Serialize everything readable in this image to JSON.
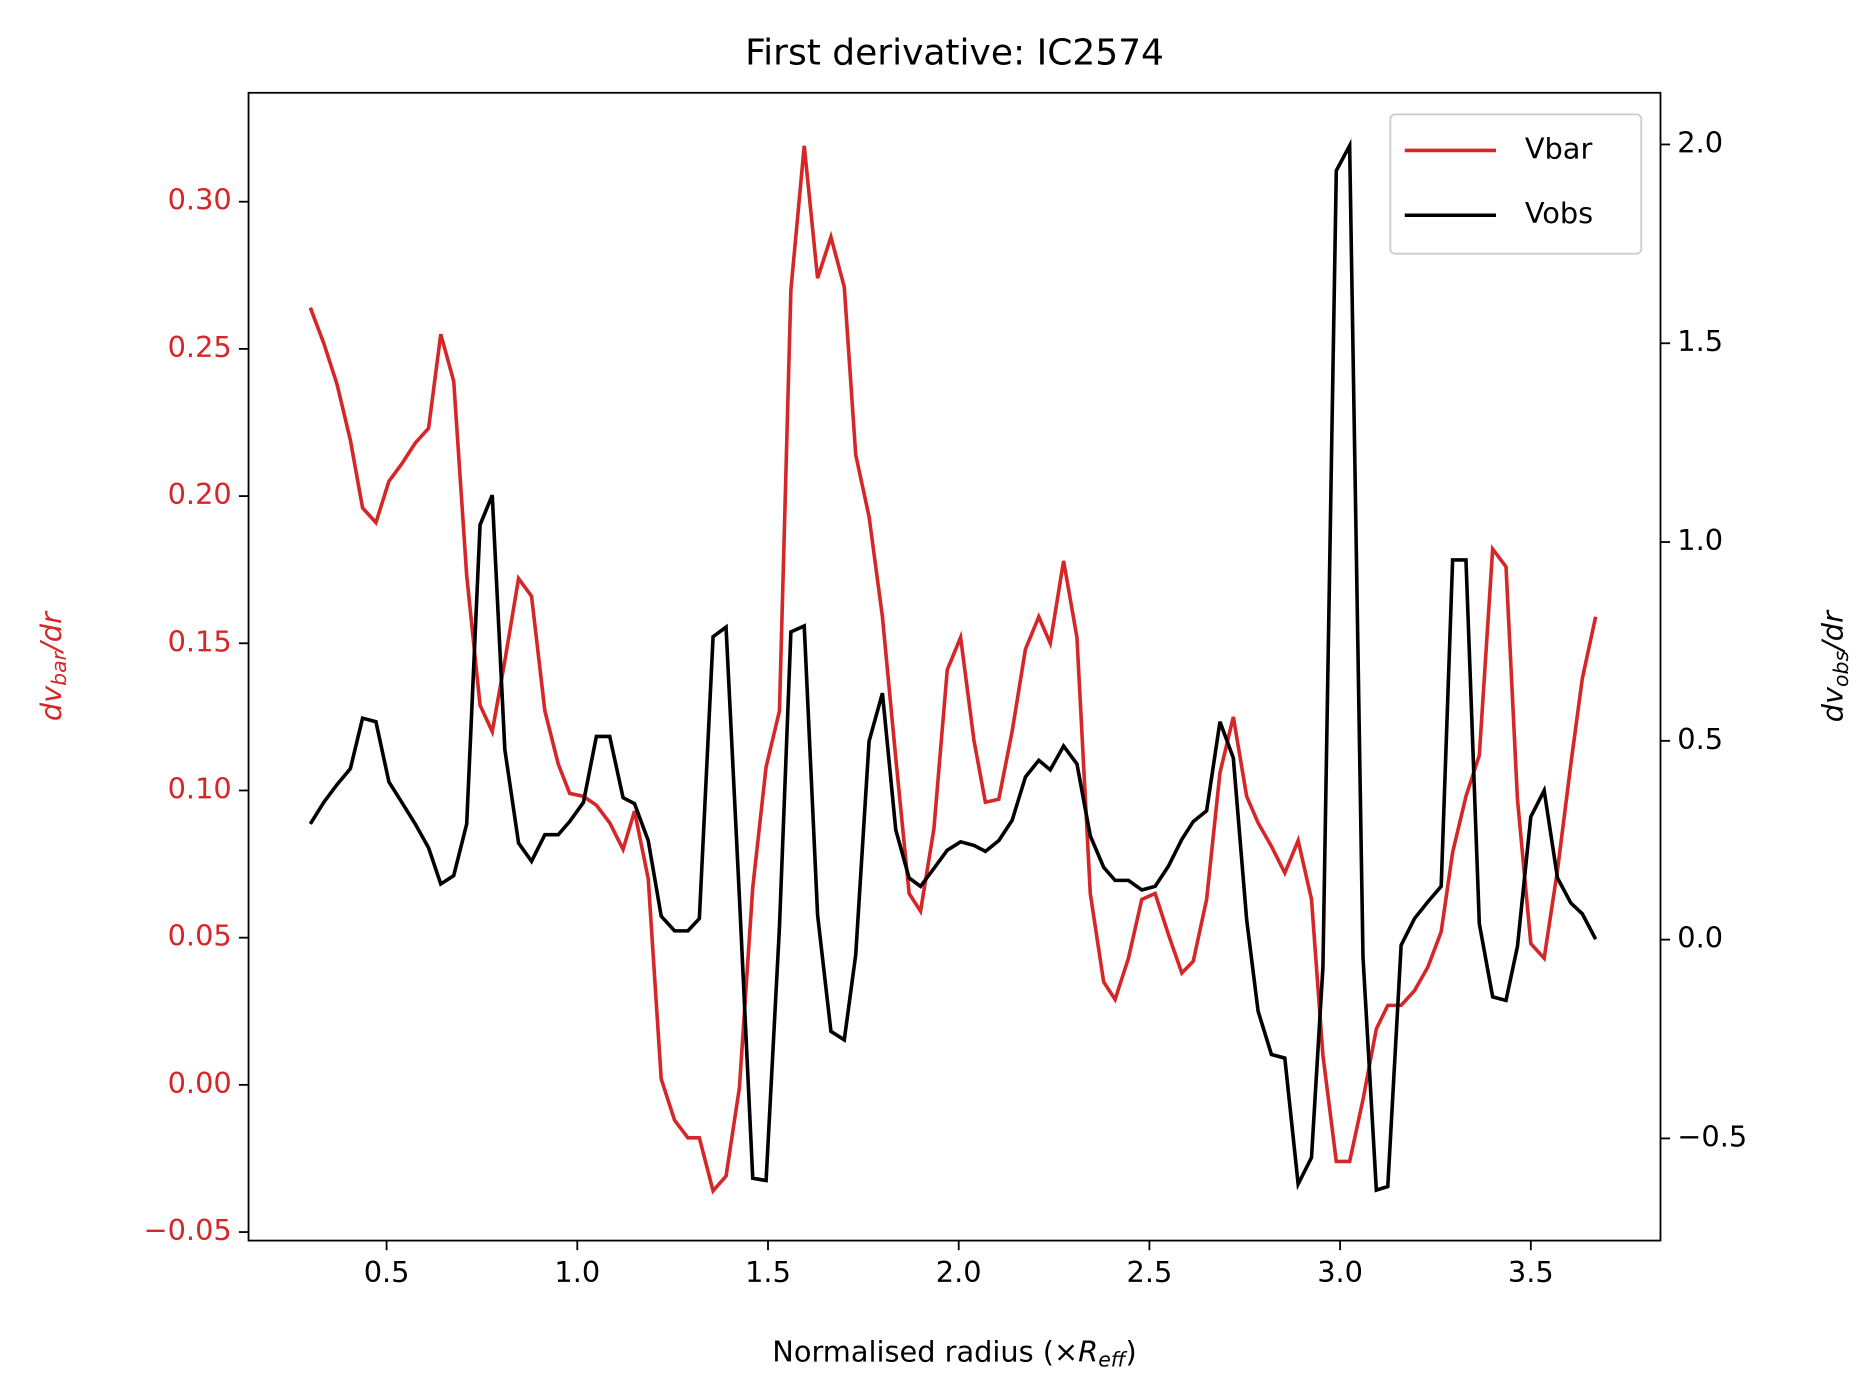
{
  "chart_data": {
    "type": "line",
    "title": "First derivative: IC2574",
    "xlabel": [
      "Normalised radius (×",
      "R",
      "eff",
      ")"
    ],
    "ylabel": [
      "dv",
      "bar",
      "/dr"
    ],
    "y2label": [
      "dv",
      "obs",
      "/dr"
    ],
    "xlim": [
      0.138,
      3.84
    ],
    "ylim": [
      -0.0529,
      0.337
    ],
    "y2lim": [
      -0.757,
      2.13
    ],
    "xticks": [
      0.5,
      {
        "value": 1.0,
        "label": "1.0"
      },
      1.5,
      {
        "value": 2.0,
        "label": "2.0"
      },
      2.5,
      {
        "value": 3.0,
        "label": "3.0"
      },
      3.5
    ],
    "yticks": [
      {
        "value": -0.05,
        "label": "−0.05"
      },
      {
        "value": 0.0,
        "label": "0.00"
      },
      0.05,
      {
        "value": 0.1,
        "label": "0.10"
      },
      0.15,
      {
        "value": 0.2,
        "label": "0.20"
      },
      0.25,
      {
        "value": 0.3,
        "label": "0.30"
      }
    ],
    "y2ticks": [
      {
        "value": -0.5,
        "label": "−0.5"
      },
      {
        "value": 0.0,
        "label": "0.0"
      },
      0.5,
      {
        "value": 1.0,
        "label": "1.0"
      },
      1.5,
      {
        "value": 2.0,
        "label": "2.0"
      }
    ],
    "legend": "upper right",
    "x": [
      0.3,
      0.335,
      0.37,
      0.405,
      0.437,
      0.472,
      0.506,
      0.54,
      0.575,
      0.61,
      0.642,
      0.676,
      0.71,
      0.745,
      0.777,
      0.81,
      0.846,
      0.88,
      0.915,
      0.95,
      0.98,
      1.016,
      1.05,
      1.085,
      1.12,
      1.15,
      1.186,
      1.22,
      1.255,
      1.29,
      1.32,
      1.356,
      1.39,
      1.425,
      1.46,
      1.495,
      1.53,
      1.56,
      1.595,
      1.63,
      1.665,
      1.7,
      1.73,
      1.765,
      1.8,
      1.835,
      1.87,
      1.9,
      1.935,
      1.97,
      2.005,
      2.04,
      2.07,
      2.105,
      2.14,
      2.175,
      2.21,
      2.24,
      2.275,
      2.31,
      2.345,
      2.38,
      2.41,
      2.445,
      2.48,
      2.515,
      2.55,
      2.585,
      2.615,
      2.65,
      2.685,
      2.72,
      2.755,
      2.785,
      2.82,
      2.855,
      2.89,
      2.925,
      2.955,
      2.99,
      3.025,
      3.06,
      3.095,
      3.125,
      3.16,
      3.195,
      3.23,
      3.265,
      3.295,
      3.33,
      3.365,
      3.4,
      3.435,
      3.465,
      3.5,
      3.535,
      3.57,
      3.605,
      3.635,
      3.67
    ],
    "series": [
      {
        "name": "Vbar",
        "color": "#d62728",
        "axis": "y",
        "values": [
          0.264,
          0.252,
          0.238,
          0.219,
          0.196,
          0.191,
          0.205,
          0.211,
          0.218,
          0.223,
          0.255,
          0.239,
          0.173,
          0.129,
          0.12,
          0.144,
          0.172,
          0.166,
          0.127,
          0.109,
          0.099,
          0.098,
          0.095,
          0.089,
          0.08,
          0.093,
          0.07,
          0.002,
          -0.012,
          -0.018,
          -0.018,
          -0.036,
          -0.031,
          -0.001,
          0.067,
          0.108,
          0.127,
          0.27,
          0.319,
          0.274,
          0.288,
          0.271,
          0.214,
          0.193,
          0.159,
          0.111,
          0.065,
          0.059,
          0.087,
          0.141,
          0.152,
          0.117,
          0.096,
          0.097,
          0.12,
          0.148,
          0.159,
          0.15,
          0.178,
          0.152,
          0.065,
          0.035,
          0.029,
          0.043,
          0.063,
          0.065,
          0.051,
          0.038,
          0.042,
          0.063,
          0.106,
          0.125,
          0.098,
          0.089,
          0.081,
          0.072,
          0.083,
          0.063,
          0.01,
          -0.026,
          -0.026,
          -0.005,
          0.019,
          0.027,
          0.027,
          0.032,
          0.04,
          0.052,
          0.079,
          0.098,
          0.112,
          0.182,
          0.176,
          0.097,
          0.048,
          0.043,
          0.073,
          0.109,
          0.138,
          0.159
        ]
      },
      {
        "name": "Vobs",
        "color": "#000000",
        "axis": "y2",
        "values": [
          0.291,
          0.345,
          0.39,
          0.43,
          0.557,
          0.548,
          0.397,
          0.345,
          0.291,
          0.231,
          0.14,
          0.161,
          0.291,
          1.043,
          1.118,
          0.478,
          0.243,
          0.197,
          0.264,
          0.264,
          0.297,
          0.345,
          0.511,
          0.511,
          0.357,
          0.342,
          0.249,
          0.059,
          0.022,
          0.022,
          0.053,
          0.762,
          0.786,
          0.107,
          -0.6,
          -0.606,
          0.031,
          0.774,
          0.789,
          0.062,
          -0.231,
          -0.252,
          -0.038,
          0.499,
          0.62,
          0.276,
          0.155,
          0.134,
          0.179,
          0.225,
          0.246,
          0.237,
          0.222,
          0.249,
          0.3,
          0.409,
          0.451,
          0.427,
          0.487,
          0.442,
          0.261,
          0.182,
          0.149,
          0.149,
          0.125,
          0.134,
          0.185,
          0.252,
          0.297,
          0.324,
          0.548,
          0.457,
          0.05,
          -0.18,
          -0.289,
          -0.298,
          -0.615,
          -0.548,
          -0.068,
          1.934,
          1.997,
          -0.044,
          -0.63,
          -0.621,
          -0.014,
          0.053,
          0.095,
          0.134,
          0.955,
          0.955,
          0.04,
          -0.144,
          -0.153,
          -0.017,
          0.309,
          0.375,
          0.155,
          0.092,
          0.065,
          0.001
        ]
      }
    ]
  }
}
